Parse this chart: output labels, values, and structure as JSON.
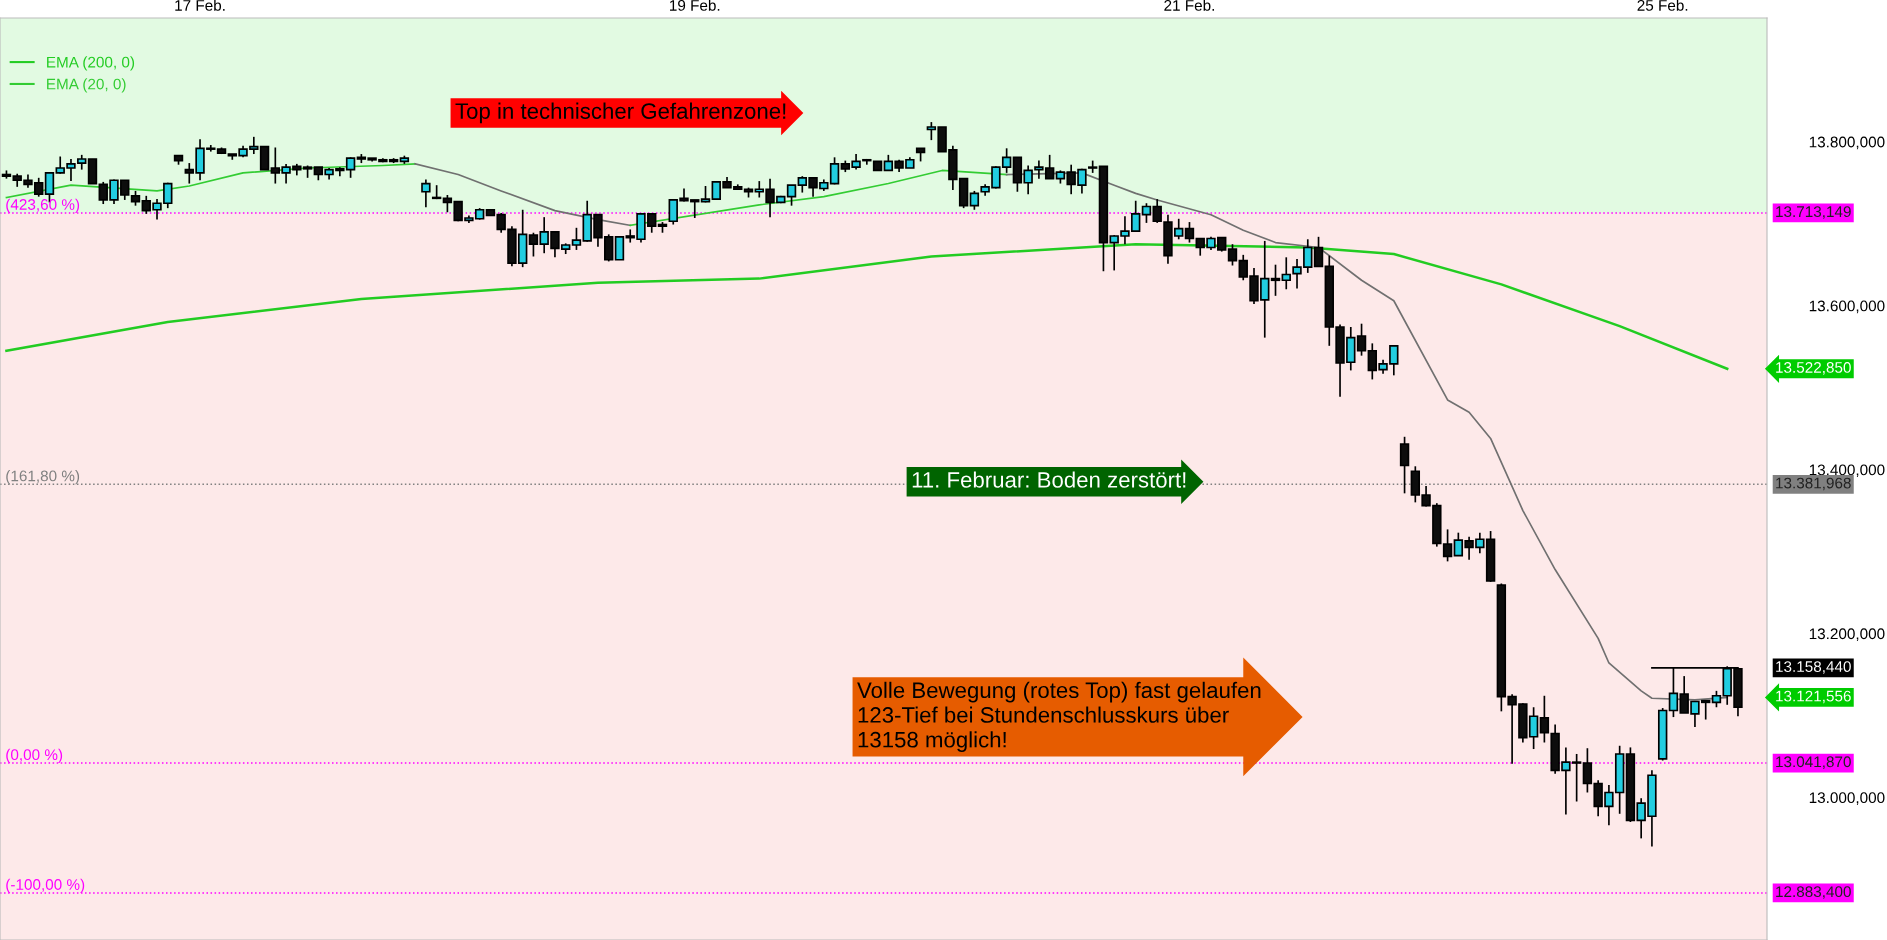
{
  "chart_data": {
    "type": "candlestick",
    "categories": [
      null,
      null,
      null,
      null,
      null,
      null,
      null,
      null,
      null,
      null,
      null,
      null,
      null,
      null,
      null,
      null,
      null,
      null,
      "17 Feb.",
      null,
      null,
      null,
      null,
      null,
      null,
      null,
      null,
      null,
      null,
      null,
      null,
      null,
      null,
      null,
      null,
      null,
      null,
      null,
      null,
      null,
      null,
      null,
      null,
      null,
      null,
      null,
      null,
      null,
      null,
      null,
      null,
      null,
      null,
      null,
      null,
      null,
      null,
      null,
      null,
      null,
      null,
      null,
      null,
      null,
      "19 Feb.",
      null,
      null,
      null,
      null,
      null,
      null,
      null,
      null,
      null,
      null,
      null,
      null,
      null,
      null,
      null,
      null,
      null,
      null,
      null,
      null,
      null,
      null,
      null,
      null,
      null,
      null,
      null,
      null,
      null,
      null,
      null,
      null,
      null,
      null,
      null,
      null,
      null,
      null,
      null,
      null,
      null,
      null,
      null,
      null,
      null,
      "21 Feb.",
      null,
      null,
      null,
      null,
      null,
      null,
      null,
      null,
      null,
      null,
      null,
      null,
      null,
      null,
      null,
      null,
      null,
      null,
      null,
      null,
      null,
      null,
      null,
      null,
      null,
      null,
      null,
      null,
      null,
      null,
      null,
      null,
      null,
      null,
      null,
      null,
      null,
      null,
      null,
      null,
      null,
      null,
      null,
      "25 Feb.",
      null,
      null,
      null,
      null,
      null,
      null,
      null
    ],
    "ohlc": [
      [
        13760,
        13765,
        13755,
        13758
      ],
      [
        13758,
        13761,
        13745,
        13753
      ],
      [
        13753,
        13760,
        13744,
        13748
      ],
      [
        13750,
        13756,
        13733,
        13736
      ],
      [
        13736,
        13763,
        13726,
        13762
      ],
      [
        13762,
        13782,
        13761,
        13768
      ],
      [
        13768,
        13779,
        13752,
        13773
      ],
      [
        13774,
        13784,
        13766,
        13779
      ],
      [
        13779,
        13779,
        13749,
        13749
      ],
      [
        13748,
        13751,
        13724,
        13729
      ],
      [
        13729,
        13754,
        13724,
        13753
      ],
      [
        13753,
        13753,
        13729,
        13735
      ],
      [
        13734,
        13740,
        13722,
        13727
      ],
      [
        13728,
        13734,
        13712,
        13716
      ],
      [
        13717,
        13730,
        13705,
        13725
      ],
      [
        13725,
        13750,
        13719,
        13749
      ],
      [
        13783,
        13783,
        13772,
        13777
      ],
      [
        13766,
        13774,
        13749,
        13762
      ],
      [
        13762,
        13803,
        13753,
        13792
      ],
      [
        13791,
        13796,
        13788,
        13792
      ],
      [
        13791,
        13793,
        13785,
        13786
      ],
      [
        13785,
        13785,
        13778,
        13783
      ],
      [
        13783,
        13795,
        13781,
        13791
      ],
      [
        13791,
        13806,
        13785,
        13794
      ],
      [
        13794,
        13794,
        13766,
        13766
      ],
      [
        13768,
        13793,
        13749,
        13762
      ],
      [
        13762,
        13773,
        13749,
        13769
      ],
      [
        13770,
        13773,
        13759,
        13766
      ],
      [
        13767,
        13771,
        13756,
        13769
      ],
      [
        13769,
        13769,
        13753,
        13760
      ],
      [
        13760,
        13768,
        13754,
        13766
      ],
      [
        13765,
        13769,
        13758,
        13767
      ],
      [
        13766,
        13781,
        13756,
        13780
      ],
      [
        13781,
        13785,
        13774,
        13779
      ],
      [
        13780,
        13780,
        13776,
        13778
      ],
      [
        13778,
        13780,
        13775,
        13776
      ],
      [
        13778,
        13780,
        13774,
        13776
      ],
      [
        13776,
        13783,
        13773,
        13780
      ],
      null,
      [
        13739,
        13754,
        13720,
        13749
      ],
      [
        13732,
        13747,
        13730,
        13731
      ],
      [
        13731,
        13735,
        13714,
        13726
      ],
      [
        13727,
        13727,
        13703,
        13704
      ],
      [
        13704,
        13710,
        13701,
        13707
      ],
      [
        13706,
        13719,
        13705,
        13717
      ],
      [
        13717,
        13717,
        13710,
        13710
      ],
      [
        13711,
        13713,
        13689,
        13693
      ],
      [
        13693,
        13697,
        13648,
        13652
      ],
      [
        13652,
        13717,
        13647,
        13687
      ],
      [
        13686,
        13689,
        13660,
        13675
      ],
      [
        13675,
        13708,
        13664,
        13690
      ],
      [
        13690,
        13690,
        13659,
        13670
      ],
      [
        13669,
        13676,
        13663,
        13674
      ],
      [
        13674,
        13695,
        13668,
        13680
      ],
      [
        13679,
        13728,
        13678,
        13711
      ],
      [
        13711,
        13711,
        13672,
        13683
      ],
      [
        13684,
        13687,
        13654,
        13656
      ],
      [
        13656,
        13685,
        13656,
        13684
      ],
      [
        13683,
        13693,
        13677,
        13685
      ],
      [
        13681,
        13713,
        13677,
        13712
      ],
      [
        13712,
        13712,
        13689,
        13697
      ],
      [
        13699,
        13702,
        13689,
        13697
      ],
      [
        13703,
        13730,
        13699,
        13729
      ],
      [
        13731,
        13743,
        13727,
        13728
      ],
      [
        13729,
        13729,
        13707,
        13727
      ],
      [
        13727,
        13746,
        13726,
        13730
      ],
      [
        13730,
        13752,
        13729,
        13751
      ],
      [
        13751,
        13757,
        13744,
        13744
      ],
      [
        13745,
        13748,
        13742,
        13742
      ],
      [
        13742,
        13744,
        13732,
        13739
      ],
      [
        13739,
        13752,
        13732,
        13742
      ],
      [
        13742,
        13755,
        13708,
        13726
      ],
      [
        13726,
        13734,
        13725,
        13733
      ],
      [
        13733,
        13747,
        13722,
        13747
      ],
      [
        13747,
        13758,
        13738,
        13756
      ],
      [
        13756,
        13756,
        13733,
        13744
      ],
      [
        13743,
        13754,
        13740,
        13750
      ],
      [
        13749,
        13781,
        13748,
        13773
      ],
      [
        13773,
        13777,
        13763,
        13767
      ],
      [
        13769,
        13785,
        13766,
        13776
      ],
      [
        13778,
        13779,
        13772,
        13777
      ],
      [
        13776,
        13776,
        13765,
        13765
      ],
      [
        13765,
        13784,
        13765,
        13776
      ],
      [
        13776,
        13778,
        13763,
        13768
      ],
      [
        13768,
        13781,
        13768,
        13778
      ],
      [
        13792,
        13792,
        13776,
        13787
      ],
      [
        13815,
        13824,
        13802,
        13818
      ],
      [
        13818,
        13818,
        13788,
        13788
      ],
      [
        13790,
        13795,
        13741,
        13754
      ],
      [
        13755,
        13755,
        13719,
        13722
      ],
      [
        13722,
        13740,
        13717,
        13737
      ],
      [
        13739,
        13748,
        13734,
        13745
      ],
      [
        13744,
        13770,
        13743,
        13769
      ],
      [
        13769,
        13792,
        13762,
        13781
      ],
      [
        13781,
        13781,
        13739,
        13750
      ],
      [
        13750,
        13771,
        13736,
        13765
      ],
      [
        13766,
        13777,
        13755,
        13769
      ],
      [
        13768,
        13784,
        13755,
        13755
      ],
      [
        13755,
        13765,
        13749,
        13763
      ],
      [
        13763,
        13772,
        13736,
        13748
      ],
      [
        13747,
        13767,
        13737,
        13766
      ],
      [
        13769,
        13777,
        13762,
        13768
      ],
      [
        13770,
        13770,
        13642,
        13677
      ],
      [
        13677,
        13686,
        13643,
        13685
      ],
      [
        13685,
        13709,
        13675,
        13691
      ],
      [
        13691,
        13728,
        13690,
        13712
      ],
      [
        13711,
        13725,
        13701,
        13721
      ],
      [
        13721,
        13730,
        13701,
        13703
      ],
      [
        13702,
        13711,
        13651,
        13661
      ],
      [
        13685,
        13706,
        13681,
        13694
      ],
      [
        13694,
        13702,
        13677,
        13682
      ],
      [
        13682,
        13682,
        13661,
        13671
      ],
      [
        13671,
        13684,
        13668,
        13682
      ],
      [
        13683,
        13683,
        13666,
        13668
      ],
      [
        13669,
        13675,
        13649,
        13655
      ],
      [
        13655,
        13662,
        13631,
        13635
      ],
      [
        13636,
        13646,
        13602,
        13606
      ],
      [
        13607,
        13679,
        13561,
        13633
      ],
      [
        13633,
        13650,
        13612,
        13631
      ],
      [
        13631,
        13659,
        13620,
        13638
      ],
      [
        13639,
        13657,
        13621,
        13647
      ],
      [
        13647,
        13681,
        13640,
        13671
      ],
      [
        13671,
        13684,
        13648,
        13648
      ],
      [
        13648,
        13661,
        13551,
        13574
      ],
      [
        13574,
        13577,
        13489,
        13530
      ],
      [
        13531,
        13574,
        13521,
        13561
      ],
      [
        13563,
        13578,
        13539,
        13545
      ],
      [
        13545,
        13554,
        13510,
        13521
      ],
      [
        13522,
        13534,
        13517,
        13529
      ],
      [
        13529,
        13552,
        13515,
        13551
      ],
      [
        13431,
        13440,
        13371,
        13405
      ],
      [
        13398,
        13404,
        13360,
        13369
      ],
      [
        13369,
        13380,
        13355,
        13356
      ],
      [
        13356,
        13359,
        13306,
        13310
      ],
      [
        13309,
        13327,
        13288,
        13294
      ],
      [
        13295,
        13323,
        13295,
        13314
      ],
      [
        13313,
        13318,
        13290,
        13305
      ],
      [
        13305,
        13323,
        13298,
        13315
      ],
      [
        13315,
        13325,
        13263,
        13264
      ],
      [
        13259,
        13261,
        13105,
        13123
      ],
      [
        13123,
        13126,
        13041,
        13113
      ],
      [
        13114,
        13115,
        13067,
        13073
      ],
      [
        13074,
        13110,
        13059,
        13099
      ],
      [
        13097,
        13124,
        13067,
        13079
      ],
      [
        13078,
        13089,
        13029,
        13033
      ],
      [
        13033,
        13061,
        12979,
        13043
      ],
      [
        13043,
        13053,
        12995,
        13042
      ],
      [
        13042,
        13060,
        13006,
        13017
      ],
      [
        13017,
        13021,
        12977,
        12989
      ],
      [
        12989,
        13015,
        12966,
        13006
      ],
      [
        13006,
        13063,
        12980,
        13053
      ],
      [
        13053,
        13061,
        12970,
        12972
      ],
      [
        12972,
        12999,
        12950,
        12993
      ],
      [
        12977,
        13033,
        12940,
        13027
      ],
      [
        13047,
        13109,
        13045,
        13106
      ],
      [
        13106,
        13158,
        13098,
        13127
      ],
      [
        13126,
        13148,
        13103,
        13103
      ],
      [
        13102,
        13117,
        13086,
        13117
      ],
      [
        13118,
        13118,
        13095,
        13116
      ],
      [
        13116,
        13130,
        13110,
        13124
      ],
      [
        13124,
        13160,
        13113,
        13157
      ],
      [
        13157,
        13158,
        13099,
        13110
      ]
    ],
    "series": [
      {
        "type": "line",
        "name": "EMA (200, 0)",
        "color": "#22cc22",
        "values": [
          13545,
          null,
          null,
          null,
          null,
          null,
          null,
          null,
          null,
          null,
          null,
          null,
          null,
          null,
          null,
          13580,
          null,
          null,
          null,
          null,
          null,
          null,
          null,
          null,
          null,
          null,
          null,
          null,
          null,
          null,
          null,
          null,
          null,
          13608,
          null,
          null,
          null,
          null,
          null,
          null,
          null,
          null,
          null,
          null,
          null,
          null,
          null,
          null,
          null,
          null,
          null,
          null,
          null,
          null,
          null,
          13628,
          null,
          null,
          null,
          null,
          null,
          null,
          null,
          null,
          null,
          null,
          null,
          null,
          null,
          null,
          13633,
          null,
          null,
          null,
          null,
          null,
          null,
          null,
          null,
          null,
          null,
          null,
          null,
          null,
          null,
          null,
          13660,
          null,
          null,
          null,
          null,
          null,
          null,
          null,
          null,
          null,
          null,
          null,
          null,
          null,
          null,
          null,
          null,
          null,
          null,
          13675,
          null,
          null,
          null,
          null,
          null,
          null,
          null,
          null,
          null,
          null,
          null,
          null,
          null,
          null,
          null,
          13671,
          null,
          null,
          null,
          null,
          null,
          null,
          null,
          13663,
          null,
          null,
          null,
          null,
          null,
          null,
          null,
          null,
          null,
          13626,
          null,
          null,
          null,
          null,
          null,
          null,
          null,
          null,
          null,
          null,
          13575,
          null,
          null,
          null,
          null,
          null,
          null,
          null,
          null,
          null,
          13523,
          null
        ]
      },
      {
        "type": "line",
        "name": "EMA (20, 0)",
        "color": "#33cc33",
        "values": [
          13732,
          null,
          null,
          null,
          null,
          null,
          13747,
          null,
          null,
          null,
          null,
          null,
          null,
          null,
          13740,
          null,
          null,
          13746,
          null,
          null,
          null,
          null,
          13762,
          null,
          null,
          null,
          null,
          null,
          13768,
          null,
          null,
          null,
          null,
          null,
          null,
          13771,
          null,
          null,
          13773,
          null,
          null,
          null,
          null,
          null,
          null,
          null,
          null,
          null,
          null,
          null,
          null,
          null,
          null,
          null,
          null,
          null,
          null,
          null,
          null,
          null,
          null,
          null,
          null,
          null,
          null,
          null,
          null,
          null,
          null,
          null,
          null,
          null,
          null,
          null,
          null,
          null,
          null,
          null,
          null,
          null,
          null,
          null,
          null,
          null,
          null,
          null,
          null,
          null,
          null,
          null,
          null,
          null,
          null,
          null,
          null,
          null,
          null,
          null,
          null,
          null,
          null,
          null,
          null,
          null,
          null,
          null,
          null,
          null,
          null,
          null,
          null,
          null,
          null,
          null,
          null,
          null,
          null,
          null,
          null,
          null,
          null,
          null,
          null,
          null,
          null,
          null,
          null,
          null,
          null,
          null,
          null,
          null,
          null,
          null,
          null,
          null,
          null,
          null,
          null,
          null,
          null,
          null,
          null,
          null,
          null,
          null,
          null,
          null,
          null,
          null,
          null,
          null,
          null,
          null,
          null,
          null,
          null,
          null,
          null,
          null,
          null,
          null
        ]
      },
      {
        "type": "line",
        "color": "#707070",
        "values": [
          null,
          null,
          null,
          null,
          null,
          null,
          null,
          null,
          null,
          null,
          null,
          null,
          null,
          null,
          null,
          null,
          null,
          null,
          null,
          null,
          null,
          null,
          null,
          null,
          null,
          null,
          null,
          null,
          null,
          null,
          null,
          null,
          null,
          null,
          null,
          null,
          null,
          null,
          13773,
          null,
          null,
          null,
          13760,
          null,
          null,
          null,
          13740,
          null,
          null,
          null,
          null,
          13716,
          null,
          null,
          null,
          13705,
          null,
          null,
          13698,
          null,
          null,
          null,
          null,
          null,
          null,
          null,
          null,
          null,
          null,
          null,
          null,
          null,
          null,
          null,
          null,
          null,
          null,
          null,
          null,
          null,
          null,
          null,
          null,
          null,
          null,
          null,
          null,
          null,
          null,
          null,
          null,
          null,
          null,
          null,
          null,
          null,
          null,
          null,
          null,
          null,
          null,
          null,
          null,
          null,
          null,
          null,
          null,
          null,
          null,
          null,
          null,
          null,
          null,
          null,
          null,
          null,
          null,
          null,
          null,
          null,
          null,
          null,
          null,
          null,
          null,
          null,
          null,
          null,
          null,
          null,
          null,
          null,
          null,
          null,
          null,
          null,
          null,
          null,
          null,
          null,
          null,
          null,
          null,
          null,
          null,
          null,
          null,
          null,
          null,
          null,
          null,
          null,
          null,
          null,
          null,
          null,
          null,
          null,
          null,
          null,
          null,
          null
        ]
      },
      {
        "type": "line",
        "color": "#33cc33",
        "values": [
          null,
          null,
          null,
          null,
          null,
          null,
          null,
          null,
          null,
          null,
          null,
          null,
          null,
          null,
          null,
          null,
          null,
          null,
          null,
          null,
          null,
          null,
          null,
          null,
          null,
          null,
          null,
          null,
          null,
          null,
          null,
          null,
          null,
          null,
          null,
          null,
          null,
          null,
          null,
          null,
          null,
          null,
          null,
          null,
          null,
          null,
          null,
          null,
          null,
          null,
          null,
          null,
          null,
          null,
          null,
          null,
          null,
          null,
          13698,
          null,
          null,
          null,
          null,
          null,
          null,
          null,
          null,
          null,
          null,
          null,
          13723,
          null,
          null,
          null,
          null,
          null,
          13733,
          null,
          null,
          null,
          null,
          null,
          13749,
          null,
          null,
          null,
          null,
          13765,
          null,
          null,
          null,
          null,
          null,
          13760,
          null,
          null,
          null,
          null,
          null,
          null,
          null,
          null,
          null,
          null,
          null,
          null,
          null,
          null,
          null,
          null,
          null,
          null,
          null,
          null,
          null,
          null,
          null,
          null,
          null,
          null,
          null,
          null,
          null,
          null,
          null,
          null,
          null,
          null,
          null,
          null,
          null,
          null,
          null,
          null,
          null,
          null,
          null,
          null,
          null,
          null,
          null,
          null,
          null,
          null,
          null,
          null,
          null,
          null,
          null,
          null,
          null,
          null,
          null,
          null,
          null,
          null,
          null,
          null,
          null,
          null,
          null,
          null
        ]
      },
      {
        "type": "line",
        "color": "#707070",
        "values": [
          null,
          null,
          null,
          null,
          null,
          null,
          null,
          null,
          null,
          null,
          null,
          null,
          null,
          null,
          null,
          null,
          null,
          null,
          null,
          null,
          null,
          null,
          null,
          null,
          null,
          null,
          null,
          null,
          null,
          null,
          null,
          null,
          null,
          null,
          null,
          null,
          null,
          null,
          null,
          null,
          null,
          null,
          null,
          null,
          null,
          null,
          null,
          null,
          null,
          null,
          null,
          null,
          null,
          null,
          null,
          null,
          null,
          null,
          null,
          null,
          null,
          null,
          null,
          null,
          null,
          null,
          null,
          null,
          null,
          null,
          null,
          null,
          null,
          null,
          null,
          null,
          null,
          null,
          null,
          null,
          null,
          null,
          null,
          null,
          null,
          null,
          null,
          null,
          null,
          null,
          null,
          null,
          null,
          13760,
          null,
          null,
          null,
          null,
          null,
          null,
          13762,
          null,
          null,
          13747,
          null,
          13737,
          null,
          13729,
          null,
          null,
          null,
          null,
          13711,
          null,
          null,
          13692,
          null,
          null,
          13677,
          null,
          null,
          null,
          13671,
          null,
          null,
          null,
          13631,
          null,
          null,
          13606,
          null,
          null,
          null,
          null,
          13485,
          null,
          13470,
          null,
          13438,
          null,
          null,
          13350,
          null,
          null,
          13278,
          null,
          null,
          null,
          13194,
          13164,
          null,
          null,
          13130,
          13121,
          null,
          null,
          null,
          13119,
          null,
          null,
          13122,
          null
        ]
      },
      {
        "type": "line",
        "color": "#000000",
        "values": [
          null,
          null,
          null,
          null,
          null,
          null,
          null,
          null,
          null,
          null,
          null,
          null,
          null,
          null,
          null,
          null,
          null,
          null,
          null,
          null,
          null,
          null,
          null,
          null,
          null,
          null,
          null,
          null,
          null,
          null,
          null,
          null,
          null,
          null,
          null,
          null,
          null,
          null,
          null,
          null,
          null,
          null,
          null,
          null,
          null,
          null,
          null,
          null,
          null,
          null,
          null,
          null,
          null,
          null,
          null,
          null,
          null,
          null,
          null,
          null,
          null,
          null,
          null,
          null,
          null,
          null,
          null,
          null,
          null,
          null,
          null,
          null,
          null,
          null,
          null,
          null,
          null,
          null,
          null,
          null,
          null,
          null,
          null,
          null,
          null,
          null,
          null,
          null,
          null,
          null,
          null,
          null,
          null,
          null,
          null,
          null,
          null,
          null,
          null,
          null,
          null,
          null,
          null,
          null,
          null,
          null,
          null,
          null,
          null,
          null,
          null,
          null,
          null,
          null,
          null,
          null,
          null,
          null,
          null,
          null,
          null,
          null,
          null,
          null,
          null,
          null,
          null,
          null,
          null,
          null,
          null,
          null,
          null,
          null,
          null,
          null,
          null,
          null,
          null,
          null,
          null,
          null,
          null,
          null,
          null,
          null,
          null,
          null,
          null,
          null,
          null,
          null,
          null,
          13158,
          null,
          null,
          null,
          null,
          null,
          null,
          null,
          13158
        ]
      }
    ],
    "ylim": [
      12826,
      13951
    ],
    "yticks": [
      {
        "value": 13000,
        "label": "13.000,000"
      },
      {
        "value": 13200,
        "label": "13.200,000"
      },
      {
        "value": 13400,
        "label": "13.400,000"
      },
      {
        "value": 13600,
        "label": "13.600,000"
      },
      {
        "value": 13800,
        "label": "13.800,000"
      }
    ],
    "bands": [
      {
        "axis": "y",
        "from": 13713.149,
        "to": 13951,
        "color": "#e2fae2"
      },
      {
        "axis": "y",
        "from": 12826,
        "to": 13713.149,
        "color": "#fde9e9"
      }
    ],
    "ref_lines": [
      {
        "axis": "y",
        "value": 13713.149,
        "label": "13.713,149",
        "color": "#ff00ff",
        "line_style": "dotted"
      },
      {
        "axis": "y",
        "value": 13381.968,
        "label": "13.381,968",
        "color": "#808080",
        "line_style": "dotted"
      },
      {
        "axis": "y",
        "value": 13041.87,
        "label": "13.041,870",
        "color": "#ff00ff",
        "line_style": "dotted"
      },
      {
        "axis": "y",
        "value": 12883.4,
        "label": "12.883,400",
        "color": "#ff00ff",
        "line_style": "dotted"
      }
    ],
    "annotations": [
      "Top in technischer Gefahrenzone!",
      "11. Februar: Boden zerstört!",
      "Volle Bewegung (rotes Top) fast gelaufen\n123-Tief bei Stundenschlusskurs über\n13158 möglich!",
      "(423,60 %)",
      "(161,80 %)",
      "(0,00 %)",
      "(-100,00 %)",
      "13.522,850",
      "13.158,440",
      "13.121,556"
    ],
    "legend": "top left",
    "grid": false
  }
}
